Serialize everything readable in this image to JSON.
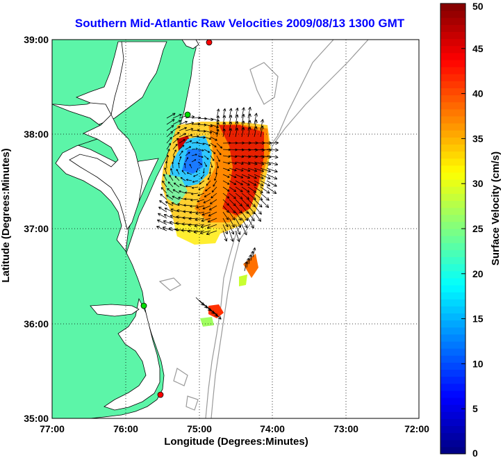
{
  "title": "Southern Mid-Atlantic Raw Velocities 2009/08/13 1300 GMT",
  "x_axis": {
    "label": "Longitude (Degrees:Minutes)",
    "ticks": [
      {
        "value": -77,
        "label": "77:00"
      },
      {
        "value": -76,
        "label": "76:00"
      },
      {
        "value": -75,
        "label": "75:00"
      },
      {
        "value": -74,
        "label": "74:00"
      },
      {
        "value": -73,
        "label": "73:00"
      },
      {
        "value": -72,
        "label": "72:00"
      }
    ]
  },
  "y_axis": {
    "label": "Latitude (Degrees:Minutes)",
    "ticks": [
      {
        "value": 39,
        "label": "39:00"
      },
      {
        "value": 38,
        "label": "38:00"
      },
      {
        "value": 37,
        "label": "37:00"
      },
      {
        "value": 36,
        "label": "36:00"
      },
      {
        "value": 35,
        "label": "35:00"
      }
    ]
  },
  "colorbar": {
    "label": "Surface Velocity (cm/s)",
    "ticks": [
      "0",
      "5",
      "10",
      "15",
      "20",
      "25",
      "30",
      "35",
      "40",
      "45",
      "50"
    ],
    "range": [
      0,
      50
    ],
    "colormap": "jet"
  },
  "map_extent": {
    "lon": [
      -77,
      -72
    ],
    "lat": [
      35,
      39
    ]
  },
  "colors": {
    "land": "#5cf5a8",
    "coastline": "#000000",
    "bathymetry": "#999999",
    "title": "#0000ff",
    "station_red": "#ff0000",
    "station_green": "#00dd00"
  },
  "stations": [
    {
      "color": "red",
      "lon": -75.12,
      "lat": 38.99
    },
    {
      "color": "green",
      "lon": -75.15,
      "lat": 38.23
    },
    {
      "color": "green",
      "lon": -75.72,
      "lat": 36.18
    },
    {
      "color": "red",
      "lon": -75.52,
      "lat": 35.24
    }
  ],
  "velocity_regions": [
    {
      "name": "main-field",
      "lon_range": [
        -75.45,
        -73.95
      ],
      "lat_range": [
        36.95,
        38.05
      ]
    },
    {
      "name": "patch-east",
      "lon_range": [
        -74.4,
        -74.2
      ],
      "lat_range": [
        36.55,
        36.75
      ]
    },
    {
      "name": "patch-south",
      "lon_range": [
        -74.9,
        -74.6
      ],
      "lat_range": [
        36.1,
        36.3
      ]
    }
  ]
}
